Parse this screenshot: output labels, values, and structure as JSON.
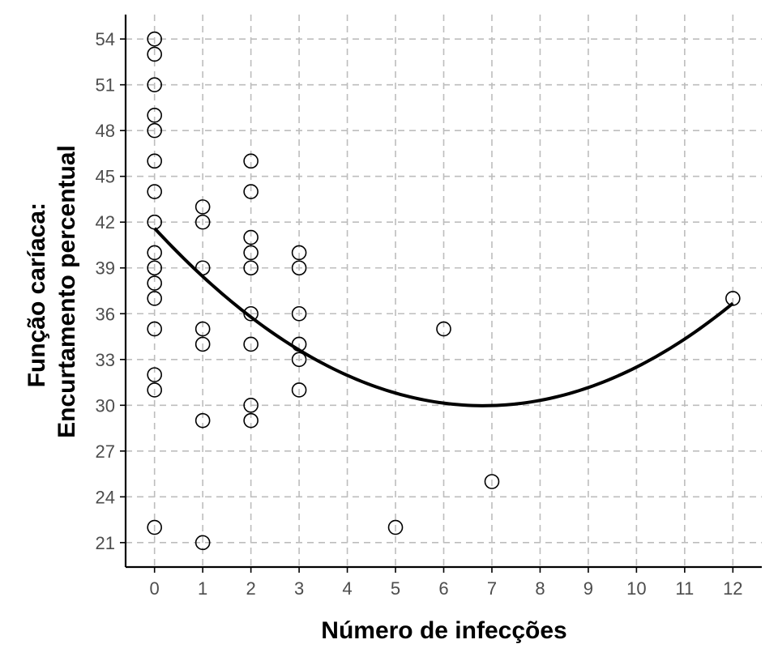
{
  "chart_data": {
    "type": "scatter",
    "title": "",
    "xlabel": "Número de infecções",
    "ylabel_lines": [
      "Função caríaca:",
      "Encurtamento percentual"
    ],
    "xlim": [
      -0.6,
      12.6
    ],
    "ylim": [
      19.4,
      55.6
    ],
    "x_ticks": [
      0,
      1,
      2,
      3,
      4,
      5,
      6,
      7,
      8,
      9,
      10,
      11,
      12
    ],
    "y_ticks": [
      21,
      24,
      27,
      30,
      33,
      36,
      39,
      42,
      45,
      48,
      51,
      54
    ],
    "grid": true,
    "points": [
      [
        0,
        54
      ],
      [
        0,
        53
      ],
      [
        0,
        51
      ],
      [
        0,
        49
      ],
      [
        0,
        48
      ],
      [
        0,
        46
      ],
      [
        0,
        44
      ],
      [
        0,
        42
      ],
      [
        0,
        40
      ],
      [
        0,
        39
      ],
      [
        0,
        38
      ],
      [
        0,
        37
      ],
      [
        0,
        35
      ],
      [
        0,
        32
      ],
      [
        0,
        31
      ],
      [
        0,
        22
      ],
      [
        1,
        43
      ],
      [
        1,
        42
      ],
      [
        1,
        39
      ],
      [
        1,
        35
      ],
      [
        1,
        34
      ],
      [
        1,
        29
      ],
      [
        1,
        21
      ],
      [
        2,
        46
      ],
      [
        2,
        44
      ],
      [
        2,
        41
      ],
      [
        2,
        40
      ],
      [
        2,
        39
      ],
      [
        2,
        36
      ],
      [
        2,
        34
      ],
      [
        2,
        30
      ],
      [
        2,
        29
      ],
      [
        3,
        40
      ],
      [
        3,
        39
      ],
      [
        3,
        36
      ],
      [
        3,
        34
      ],
      [
        3,
        33
      ],
      [
        3,
        31
      ],
      [
        5,
        22
      ],
      [
        6,
        35
      ],
      [
        7,
        25
      ],
      [
        12,
        37
      ]
    ],
    "fit_curve": {
      "type": "quadratic",
      "coefficients": [
        41.6,
        -3.41,
        0.25
      ],
      "x_range": [
        0,
        12
      ]
    },
    "colors": {
      "point_stroke": "#000000",
      "curve": "#000000",
      "grid": "#bdbdbd",
      "axis": "#000000",
      "tick_label": "#4d4d4d"
    }
  }
}
